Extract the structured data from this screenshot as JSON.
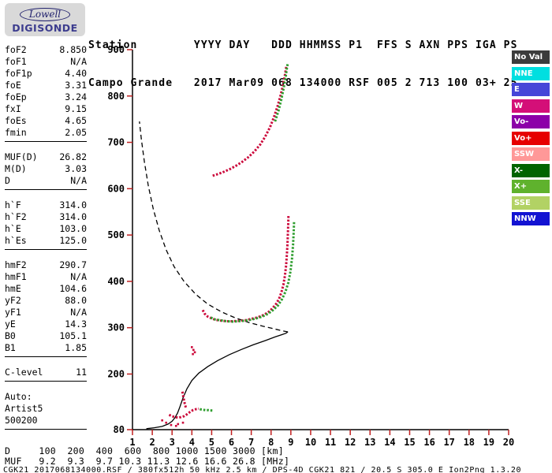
{
  "logo": {
    "top": "Lowell",
    "bottom": "DIGISONDE"
  },
  "header": {
    "line1": "Station        YYYY DAY   DDD HHMMSS P1  FFS S AXN PPS IGA PS",
    "line2": "Campo Grande   2017 Mar09 068 134000 RSF 005 2 713 100 03+ 25"
  },
  "parameters": {
    "groups": [
      [
        {
          "label": "foF2",
          "value": "8.850"
        },
        {
          "label": "foF1",
          "value": "N/A"
        },
        {
          "label": "foF1p",
          "value": "4.40"
        },
        {
          "label": "foE",
          "value": "3.31"
        },
        {
          "label": "foEp",
          "value": "3.24"
        },
        {
          "label": "fxI",
          "value": "9.15"
        },
        {
          "label": "foEs",
          "value": "4.65"
        },
        {
          "label": "fmin",
          "value": "2.05"
        }
      ],
      [
        {
          "label": "MUF(D)",
          "value": "26.82"
        },
        {
          "label": "M(D)",
          "value": "3.03"
        },
        {
          "label": "D",
          "value": "N/A"
        }
      ],
      [
        {
          "label": "h`F",
          "value": "314.0"
        },
        {
          "label": "h`F2",
          "value": "314.0"
        },
        {
          "label": "h`E",
          "value": "103.0"
        },
        {
          "label": "h`Es",
          "value": "125.0"
        }
      ],
      [
        {
          "label": "hmF2",
          "value": "290.7"
        },
        {
          "label": "hmF1",
          "value": "N/A"
        },
        {
          "label": "hmE",
          "value": "104.6"
        },
        {
          "label": "yF2",
          "value": "88.0"
        },
        {
          "label": "yF1",
          "value": "N/A"
        },
        {
          "label": "yE",
          "value": "14.3"
        },
        {
          "label": "B0",
          "value": "105.1"
        },
        {
          "label": "B1",
          "value": "1.85"
        }
      ],
      [
        {
          "label": "C-level",
          "value": "11"
        }
      ],
      [
        {
          "label": "Auto:",
          "value": ""
        },
        {
          "label": "Artist5",
          "value": ""
        },
        {
          "label": "500200",
          "value": ""
        }
      ]
    ]
  },
  "legend": {
    "items": [
      {
        "label": "No Val",
        "color": "#3c3c3c"
      },
      {
        "label": "NNE",
        "color": "#00dfe0"
      },
      {
        "label": "E",
        "color": "#4646d8"
      },
      {
        "label": "W",
        "color": "#d40f78"
      },
      {
        "label": "Vo-",
        "color": "#8c00a8"
      },
      {
        "label": "Vo+",
        "color": "#e60000"
      },
      {
        "label": "SSW",
        "color": "#ff9898"
      },
      {
        "label": "X-",
        "color": "#006400"
      },
      {
        "label": "X+",
        "color": "#5fb22d"
      },
      {
        "label": "SSE",
        "color": "#b2d264"
      },
      {
        "label": "NNW",
        "color": "#1212d2"
      }
    ]
  },
  "footer": {
    "rows": [
      {
        "label": "D",
        "values": [
          "100",
          "200",
          "400",
          "600",
          "800",
          "1000",
          "1500",
          "3000"
        ],
        "unit": "[km]"
      },
      {
        "label": "MUF",
        "values": [
          "9.2",
          "9.3",
          "9.7",
          "10.3",
          "11.3",
          "12.6",
          "16.6",
          "26.8"
        ],
        "unit": "[MHz]"
      }
    ],
    "status_line": "CGK21_2017068134000.RSF / 380fx512h 50 kHz 2.5 km / DPS-4D CGK21 821 / 20.5 S 305.0 E Ion2Png 1.3.20"
  },
  "chart_data": {
    "type": "scatter",
    "title": "Digisonde ionogram Campo Grande 2017-03-09 13:40:00",
    "xlim": [
      1,
      20
    ],
    "ylim": [
      80,
      900
    ],
    "x_ticks": [
      1,
      2,
      3,
      4,
      5,
      6,
      7,
      8,
      9,
      10,
      11,
      12,
      13,
      14,
      15,
      16,
      17,
      18,
      19,
      20
    ],
    "y_ticks": [
      80,
      200,
      300,
      400,
      500,
      600,
      700,
      800,
      900
    ],
    "tick_color": "#c02020",
    "axis_color": "#000000",
    "grid": false,
    "legend_position": "right",
    "series": [
      {
        "name": "F2-trace O-mode",
        "color": "#cc0a3c",
        "render": "line",
        "points": [
          [
            4.55,
            338
          ],
          [
            4.65,
            330
          ],
          [
            4.8,
            324
          ],
          [
            5.0,
            320
          ],
          [
            5.2,
            317
          ],
          [
            5.5,
            315
          ],
          [
            5.8,
            314
          ],
          [
            6.1,
            314
          ],
          [
            6.4,
            315
          ],
          [
            6.7,
            316
          ],
          [
            7.0,
            319
          ],
          [
            7.3,
            322
          ],
          [
            7.6,
            327
          ],
          [
            7.85,
            333
          ],
          [
            8.05,
            341
          ],
          [
            8.25,
            351
          ],
          [
            8.4,
            362
          ],
          [
            8.52,
            376
          ],
          [
            8.62,
            392
          ],
          [
            8.7,
            412
          ],
          [
            8.76,
            434
          ],
          [
            8.8,
            458
          ],
          [
            8.83,
            482
          ],
          [
            8.85,
            505
          ],
          [
            8.87,
            528
          ],
          [
            8.88,
            542
          ]
        ]
      },
      {
        "name": "F2-trace X-mode",
        "color": "#2f9e2f",
        "render": "line",
        "points": [
          [
            4.95,
            322
          ],
          [
            5.15,
            318
          ],
          [
            5.45,
            316
          ],
          [
            5.75,
            314
          ],
          [
            6.05,
            313
          ],
          [
            6.35,
            314
          ],
          [
            6.65,
            315
          ],
          [
            6.95,
            317
          ],
          [
            7.25,
            320
          ],
          [
            7.55,
            324
          ],
          [
            7.85,
            330
          ],
          [
            8.1,
            338
          ],
          [
            8.35,
            348
          ],
          [
            8.55,
            361
          ],
          [
            8.72,
            377
          ],
          [
            8.87,
            397
          ],
          [
            8.98,
            421
          ],
          [
            9.06,
            449
          ],
          [
            9.11,
            478
          ],
          [
            9.14,
            505
          ],
          [
            9.16,
            528
          ]
        ]
      },
      {
        "name": "second-hop O-mode",
        "color": "#cc0a3c",
        "render": "line",
        "points": [
          [
            5.05,
            628
          ],
          [
            5.35,
            632
          ],
          [
            5.65,
            637
          ],
          [
            5.95,
            643
          ],
          [
            6.25,
            650
          ],
          [
            6.55,
            658
          ],
          [
            6.85,
            668
          ],
          [
            7.15,
            680
          ],
          [
            7.45,
            695
          ],
          [
            7.7,
            712
          ],
          [
            7.95,
            733
          ],
          [
            8.15,
            755
          ],
          [
            8.33,
            778
          ],
          [
            8.48,
            801
          ],
          [
            8.6,
            823
          ],
          [
            8.7,
            845
          ],
          [
            8.78,
            866
          ]
        ]
      },
      {
        "name": "second-hop X-mode",
        "color": "#2f9e2f",
        "render": "line",
        "points": [
          [
            8.2,
            745
          ],
          [
            8.38,
            769
          ],
          [
            8.52,
            793
          ],
          [
            8.63,
            816
          ],
          [
            8.73,
            839
          ],
          [
            8.8,
            860
          ],
          [
            8.85,
            872
          ]
        ]
      },
      {
        "name": "Es-trace O-mode",
        "color": "#cc0a3c",
        "render": "line",
        "points": [
          [
            2.85,
            112
          ],
          [
            3.0,
            109
          ],
          [
            3.15,
            107
          ],
          [
            3.3,
            106
          ],
          [
            3.45,
            107
          ],
          [
            3.6,
            109
          ],
          [
            3.75,
            113
          ],
          [
            3.9,
            118
          ],
          [
            4.05,
            122
          ],
          [
            4.2,
            124
          ],
          [
            4.35,
            125
          ]
        ]
      },
      {
        "name": "Es-trace X-mode",
        "color": "#2f9e2f",
        "render": "line",
        "points": [
          [
            4.4,
            124
          ],
          [
            4.55,
            123
          ],
          [
            4.7,
            122
          ],
          [
            4.85,
            122
          ],
          [
            5.05,
            121
          ]
        ]
      },
      {
        "name": "Es-retardation-wisp",
        "color": "#cc0a3c",
        "render": "line",
        "points": [
          [
            3.52,
            162
          ],
          [
            3.58,
            148
          ],
          [
            3.64,
            136
          ],
          [
            3.7,
            127
          ]
        ]
      },
      {
        "name": "scatter-echoes",
        "color": "#cc0a3c",
        "render": "dots",
        "points": [
          [
            2.5,
            100
          ],
          [
            2.7,
            95
          ],
          [
            2.95,
            90
          ],
          [
            3.2,
            88
          ],
          [
            3.3,
            92
          ],
          [
            3.55,
            95
          ],
          [
            4.0,
            258
          ],
          [
            4.08,
            252
          ],
          [
            4.15,
            247
          ],
          [
            4.05,
            243
          ]
        ]
      }
    ],
    "profiles": [
      {
        "name": "true-height-profile",
        "style": "solid",
        "color": "#000000",
        "points": [
          [
            1.7,
            82
          ],
          [
            2.1,
            84
          ],
          [
            2.5,
            87
          ],
          [
            2.8,
            92
          ],
          [
            3.0,
            98
          ],
          [
            3.15,
            106
          ],
          [
            3.28,
            116
          ],
          [
            3.4,
            130
          ],
          [
            3.55,
            148
          ],
          [
            3.75,
            168
          ],
          [
            4.0,
            186
          ],
          [
            4.35,
            202
          ],
          [
            4.8,
            216
          ],
          [
            5.3,
            229
          ],
          [
            5.9,
            242
          ],
          [
            6.5,
            253
          ],
          [
            7.1,
            263
          ],
          [
            7.7,
            272
          ],
          [
            8.2,
            280
          ],
          [
            8.55,
            285
          ],
          [
            8.75,
            288
          ],
          [
            8.85,
            291
          ]
        ]
      },
      {
        "name": "modeled-topside-profile",
        "style": "dashed",
        "color": "#000000",
        "points": [
          [
            8.85,
            291
          ],
          [
            8.6,
            293
          ],
          [
            8.2,
            297
          ],
          [
            7.6,
            303
          ],
          [
            6.9,
            311
          ],
          [
            6.2,
            321
          ],
          [
            5.5,
            334
          ],
          [
            4.8,
            351
          ],
          [
            4.2,
            372
          ],
          [
            3.6,
            400
          ],
          [
            3.1,
            432
          ],
          [
            2.7,
            468
          ],
          [
            2.35,
            510
          ],
          [
            2.05,
            556
          ],
          [
            1.8,
            606
          ],
          [
            1.6,
            658
          ],
          [
            1.45,
            706
          ],
          [
            1.35,
            745
          ]
        ]
      }
    ]
  }
}
